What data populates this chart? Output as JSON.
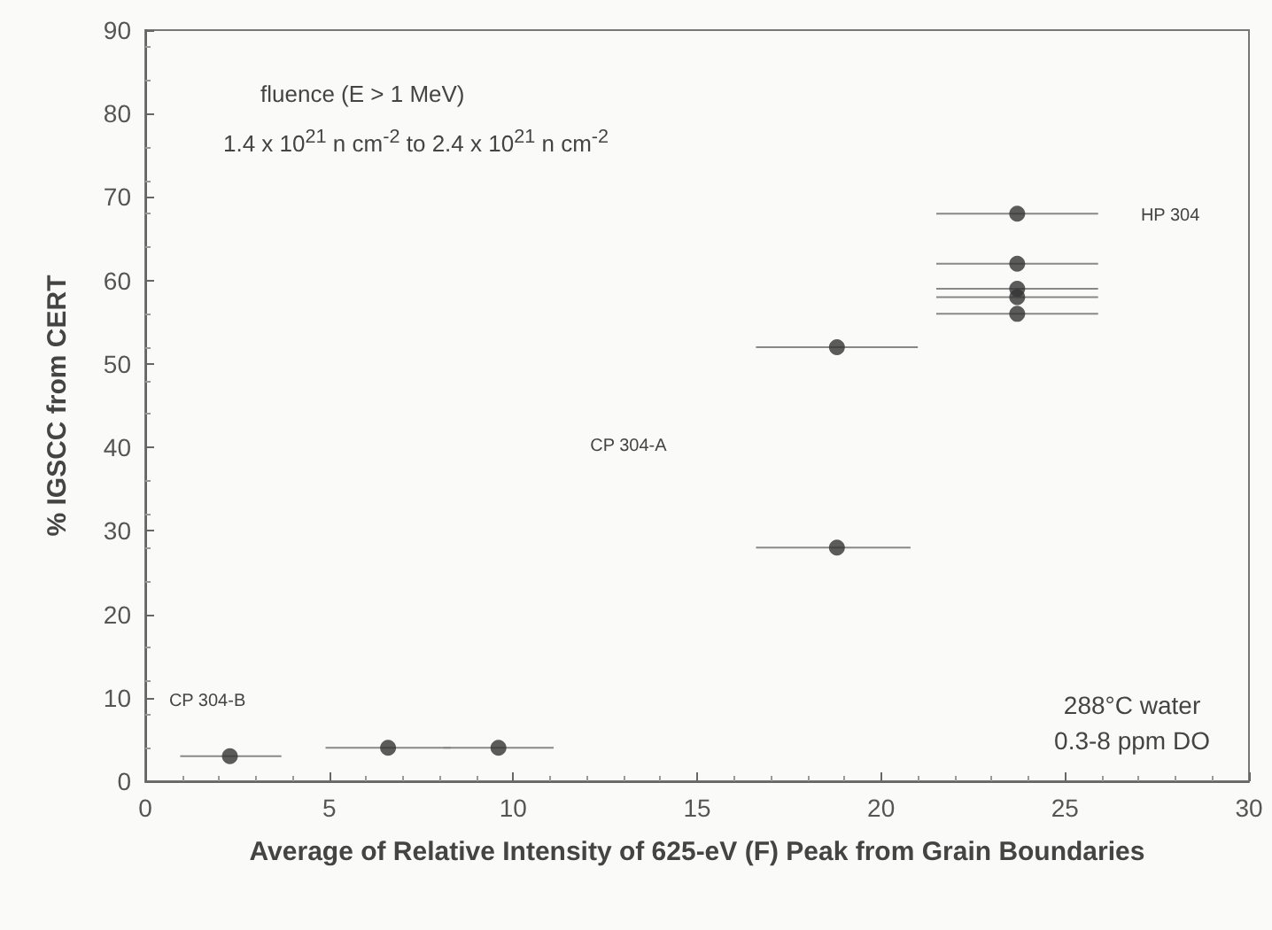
{
  "chart_data": {
    "type": "scatter",
    "xlabel": "Average of Relative Intensity of 625-eV (F) Peak from Grain Boundaries",
    "ylabel": "% IGSCC from CERT",
    "x": [
      2.3,
      6.6,
      9.6,
      18.8,
      18.8,
      23.7,
      23.7,
      23.7,
      23.7,
      23.7
    ],
    "series": [
      {
        "color": "#333333",
        "values": [
          3,
          4,
          4,
          52,
          28,
          68,
          62,
          59,
          58,
          56
        ],
        "xerrors": [
          [
            0.95,
            3.7
          ],
          [
            4.9,
            8.3
          ],
          [
            8.1,
            11.1
          ],
          [
            16.6,
            21.0
          ],
          [
            16.6,
            20.8
          ],
          [
            21.5,
            25.9
          ],
          [
            21.5,
            25.9
          ],
          [
            21.5,
            25.9
          ],
          [
            21.5,
            25.9
          ],
          [
            21.5,
            25.9
          ]
        ]
      }
    ],
    "xlim": [
      0,
      30
    ],
    "xticks": [
      0,
      5,
      10,
      15,
      20,
      25,
      30
    ],
    "ylim": [
      0,
      90
    ],
    "yticks": [
      0,
      10,
      20,
      30,
      40,
      50,
      60,
      70,
      80,
      90
    ],
    "marker": "circle",
    "grid": false,
    "annotations": [
      "fluence (E > 1 MeV)",
      "1.4 x 10$^{21}$ n cm$^{-2}$ to 2.4 x 10$^{21}$ n cm$^{-2}$",
      "288°C water",
      "0.3-8 ppm DO",
      "CP 304-B",
      "CP 304-A",
      "HP 304"
    ]
  }
}
